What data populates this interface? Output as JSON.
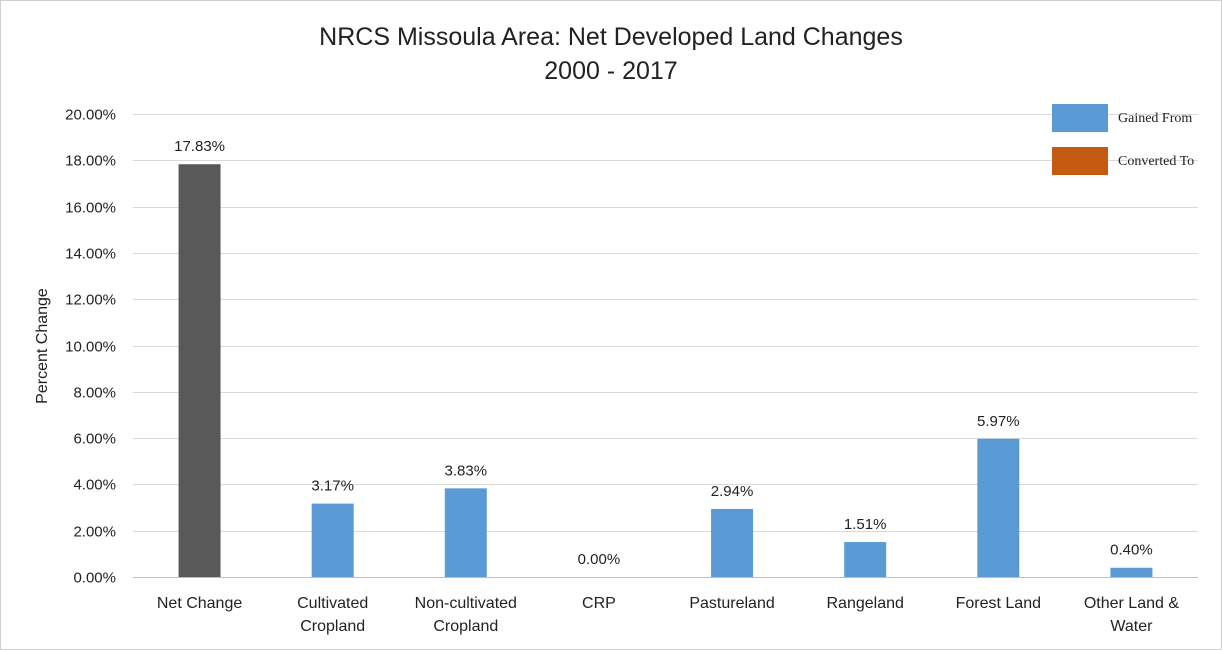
{
  "chart_data": {
    "type": "bar",
    "title_line1": "NRCS Missoula Area: Net Developed Land Changes",
    "title_line2": "2000 - 2017",
    "xlabel": "",
    "ylabel": "Percent Change",
    "ylim": [
      0,
      20
    ],
    "yticks": [
      "0.00%",
      "2.00%",
      "4.00%",
      "6.00%",
      "8.00%",
      "10.00%",
      "12.00%",
      "14.00%",
      "16.00%",
      "18.00%",
      "20.00%"
    ],
    "grid": true,
    "categories": [
      [
        "Net Change"
      ],
      [
        "Cultivated",
        "Cropland"
      ],
      [
        "Non-cultivated",
        "Cropland"
      ],
      [
        "CRP"
      ],
      [
        "Pastureland"
      ],
      [
        "Rangeland"
      ],
      [
        "Forest Land"
      ],
      [
        "Other Land &",
        "Water"
      ]
    ],
    "values": [
      17.83,
      3.17,
      3.83,
      0.0,
      2.94,
      1.51,
      5.97,
      0.4
    ],
    "data_labels": [
      "17.83%",
      "3.17%",
      "3.83%",
      "0.00%",
      "2.94%",
      "1.51%",
      "5.97%",
      "0.40%"
    ],
    "bar_colors": [
      "#595959",
      "#5b9bd5",
      "#5b9bd5",
      "#5b9bd5",
      "#5b9bd5",
      "#5b9bd5",
      "#5b9bd5",
      "#5b9bd5"
    ],
    "legend": {
      "placement": "top-right",
      "entries": [
        {
          "name": "Gained From",
          "color": "#5b9bd5"
        },
        {
          "name": "Converted To",
          "color": "#c55a11"
        }
      ]
    }
  }
}
